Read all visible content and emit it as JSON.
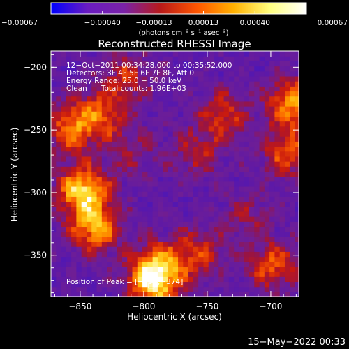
{
  "chart_data": {
    "type": "heatmap",
    "title": "Reconstructed RHESSI Image",
    "xlabel": "Heliocentric X (arcsec)",
    "ylabel": "Heliocentric Y (arcsec)",
    "xlim": [
      -873,
      -678
    ],
    "ylim": [
      -383,
      -187
    ],
    "xticks": [
      -850,
      -800,
      -750,
      -700
    ],
    "yticks": [
      -200,
      -250,
      -300,
      -350
    ],
    "xtick_labels": [
      "−850",
      "−800",
      "−750",
      "−700"
    ],
    "ytick_labels": [
      "−200",
      "−250",
      "−300",
      "−350"
    ],
    "colorbar": {
      "range": [
        -0.00067,
        0.00067
      ],
      "tick_values": [
        -0.00067,
        -0.0004,
        -0.00013,
        0.00013,
        0.0004,
        0.00067
      ],
      "tick_labels": [
        "−0.00067",
        "−0.00040",
        "−0.00013",
        "0.00013",
        "0.00040",
        "0.00067"
      ],
      "unit_label": "(photons cm⁻² s⁻¹ asec⁻²)",
      "colors": [
        "#0000ff",
        "#6a1cc0",
        "#7a22a8",
        "#b81a1a",
        "#ff5500",
        "#ffb000",
        "#ffff80",
        "#ffffff"
      ]
    },
    "info_lines": [
      "12−Oct−2011 00:34:28.000 to 00:35:52.000",
      "Detectors: 3F 4F 5F 6F 7F 8F, Att 0",
      "Energy Range: 25.0 − 50.0 keV",
      "Clean      Total counts: 1.96E+03"
    ],
    "peak_label": "Position of Peak = [−794,−374]",
    "peak": [
      -794,
      -374
    ],
    "sources": [
      {
        "x": -850,
        "y": -300,
        "v": 0.00067
      },
      {
        "x": -840,
        "y": -330,
        "v": 0.00055
      },
      {
        "x": -860,
        "y": -250,
        "v": 0.00045
      },
      {
        "x": -835,
        "y": -240,
        "v": 0.0004
      },
      {
        "x": -815,
        "y": -210,
        "v": 0.0003
      },
      {
        "x": -795,
        "y": -374,
        "v": 0.0006
      },
      {
        "x": -790,
        "y": -360,
        "v": 0.0004
      },
      {
        "x": -760,
        "y": -350,
        "v": 0.00035
      },
      {
        "x": -740,
        "y": -240,
        "v": 0.00035
      },
      {
        "x": -760,
        "y": -270,
        "v": 0.00025
      },
      {
        "x": -685,
        "y": -230,
        "v": 0.00055
      },
      {
        "x": -690,
        "y": -270,
        "v": 0.0004
      },
      {
        "x": -700,
        "y": -360,
        "v": 0.0004
      },
      {
        "x": -720,
        "y": -320,
        "v": 0.0002
      },
      {
        "x": -810,
        "y": -270,
        "v": 0.0002
      }
    ]
  },
  "footer": {
    "timestamp": "15−May−2022 00:33"
  }
}
